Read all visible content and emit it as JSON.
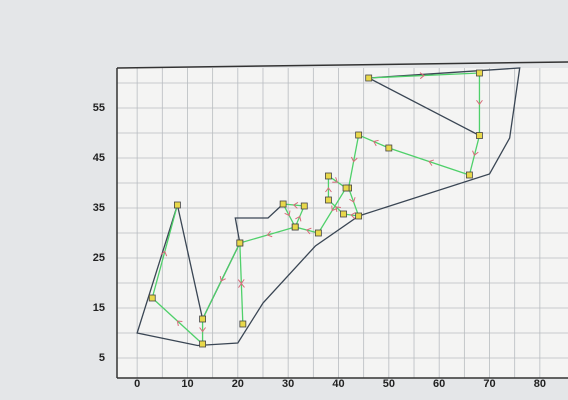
{
  "chart_data": {
    "type": "line",
    "xlim": [
      -4,
      84
    ],
    "ylim": [
      1,
      63
    ],
    "xticks": [
      0,
      10,
      20,
      30,
      40,
      50,
      60,
      70,
      80
    ],
    "yticks": [
      5,
      15,
      25,
      35,
      45,
      55
    ],
    "x_minor_ticks": [
      5,
      15,
      25,
      35,
      45,
      55,
      65,
      75
    ],
    "y_minor_ticks": [
      10,
      20,
      30,
      40,
      50,
      60
    ],
    "grid": true,
    "series": [
      {
        "color": "#3a4654",
        "x": [
          68,
          46,
          76,
          74,
          70,
          44,
          35.4,
          25,
          20,
          12,
          0,
          8,
          13,
          20.4,
          19.5,
          26,
          29
        ],
        "values": [
          49.5,
          61,
          63,
          49,
          41.8,
          33.4,
          27.4,
          16,
          8,
          7.5,
          10,
          35.6,
          12.8,
          28,
          33,
          33,
          35.8
        ]
      },
      {
        "color": "#4fd06a",
        "marker_color": "#e8d84a",
        "x": [
          46,
          68,
          68,
          66,
          50,
          44,
          42,
          44,
          41,
          38,
          38,
          41.5,
          36,
          31.4,
          33.2,
          29,
          31.4,
          20.4,
          21,
          20.4,
          13,
          13,
          3,
          8
        ],
        "values": [
          61,
          62,
          49.5,
          41.6,
          47,
          49.6,
          39,
          33.4,
          33.8,
          36.6,
          41.4,
          39,
          30,
          31.2,
          35.4,
          35.8,
          31.2,
          28,
          11.8,
          28,
          12.8,
          7.8,
          17,
          35.6
        ]
      }
    ]
  }
}
